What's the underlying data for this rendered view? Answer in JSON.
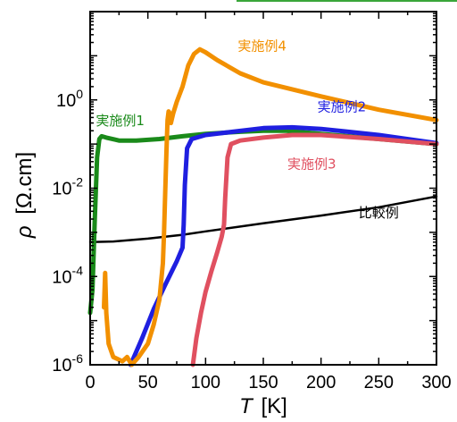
{
  "chart_data": {
    "type": "line",
    "xlabel_symbol": "T",
    "xlabel_unit": "[K]",
    "ylabel_symbol": "ρ",
    "ylabel_unit": "[Ω.cm]",
    "xlim": [
      0,
      300
    ],
    "ylim": [
      1e-06,
      100
    ],
    "yscale": "log",
    "grid": false,
    "x_ticks": [
      0,
      50,
      100,
      150,
      200,
      250,
      300
    ],
    "y_ticks": [
      {
        "value": 1e-06,
        "base": "10",
        "exp": "-6"
      },
      {
        "value": 0.0001,
        "base": "10",
        "exp": "-4"
      },
      {
        "value": 0.01,
        "base": "10",
        "exp": "-2"
      },
      {
        "value": 1,
        "base": "10",
        "exp": "0"
      }
    ],
    "series": [
      {
        "name": "比較例",
        "color": "#000000",
        "points": [
          [
            0,
            0.0006
          ],
          [
            20,
            0.00062
          ],
          [
            50,
            0.00072
          ],
          [
            80,
            0.00088
          ],
          [
            100,
            0.00105
          ],
          [
            150,
            0.0016
          ],
          [
            200,
            0.0024
          ],
          [
            250,
            0.0037
          ],
          [
            300,
            0.0065
          ]
        ]
      },
      {
        "name": "実施例1",
        "color": "#1a8a1a",
        "points": [
          [
            0,
            1.5e-05
          ],
          [
            2,
            5e-05
          ],
          [
            4,
            0.002
          ],
          [
            6,
            0.05
          ],
          [
            8,
            0.13
          ],
          [
            10,
            0.15
          ],
          [
            14,
            0.14
          ],
          [
            25,
            0.12
          ],
          [
            40,
            0.12
          ],
          [
            60,
            0.13
          ],
          [
            80,
            0.15
          ],
          [
            100,
            0.17
          ],
          [
            130,
            0.19
          ],
          [
            150,
            0.2
          ],
          [
            170,
            0.2
          ],
          [
            200,
            0.17
          ],
          [
            250,
            0.13
          ],
          [
            300,
            0.1
          ]
        ]
      },
      {
        "name": "実施例2",
        "color": "#1f1fe0",
        "points": [
          [
            35,
            1e-06
          ],
          [
            45,
            4e-06
          ],
          [
            55,
            1.8e-05
          ],
          [
            65,
            6.5e-05
          ],
          [
            75,
            0.00022
          ],
          [
            80,
            0.00045
          ],
          [
            81,
            0.0015
          ],
          [
            82,
            0.012
          ],
          [
            84,
            0.08
          ],
          [
            88,
            0.13
          ],
          [
            100,
            0.16
          ],
          [
            150,
            0.23
          ],
          [
            175,
            0.24
          ],
          [
            200,
            0.22
          ],
          [
            250,
            0.16
          ],
          [
            300,
            0.105
          ]
        ]
      },
      {
        "name": "実施例3",
        "color": "#e05060",
        "points": [
          [
            89,
            1e-06
          ],
          [
            92,
            4e-06
          ],
          [
            96,
            1.5e-05
          ],
          [
            100,
            4.5e-05
          ],
          [
            105,
            0.00013
          ],
          [
            110,
            0.00035
          ],
          [
            114,
            0.0008
          ],
          [
            116,
            0.0015
          ],
          [
            117,
            0.006
          ],
          [
            119,
            0.05
          ],
          [
            122,
            0.1
          ],
          [
            130,
            0.12
          ],
          [
            150,
            0.14
          ],
          [
            175,
            0.16
          ],
          [
            200,
            0.16
          ],
          [
            250,
            0.13
          ],
          [
            300,
            0.1
          ]
        ]
      },
      {
        "name": "実施例4",
        "color": "#f29000",
        "points": [
          [
            12,
            2e-05
          ],
          [
            13,
            0.00012
          ],
          [
            14,
            1.5e-05
          ],
          [
            16,
            3e-06
          ],
          [
            20,
            1.5e-06
          ],
          [
            28,
            1.2e-06
          ],
          [
            32,
            1.5e-06
          ],
          [
            36,
            1e-06
          ],
          [
            42,
            1.5e-06
          ],
          [
            50,
            3e-06
          ],
          [
            55,
            8e-06
          ],
          [
            60,
            3e-05
          ],
          [
            63,
            0.0002
          ],
          [
            64,
            0.001
          ],
          [
            65,
            0.008
          ],
          [
            66,
            0.06
          ],
          [
            67,
            0.35
          ],
          [
            68,
            0.55
          ],
          [
            69,
            0.5
          ],
          [
            70,
            0.3
          ],
          [
            72,
            0.5
          ],
          [
            75,
            0.9
          ],
          [
            80,
            2
          ],
          [
            85,
            6
          ],
          [
            90,
            11
          ],
          [
            95,
            14
          ],
          [
            100,
            12
          ],
          [
            110,
            8
          ],
          [
            130,
            4
          ],
          [
            150,
            2.5
          ],
          [
            200,
            1.2
          ],
          [
            250,
            0.6
          ],
          [
            300,
            0.35
          ]
        ]
      }
    ],
    "annotations": [
      {
        "text": "比較例",
        "x": 250,
        "y": 0.0022,
        "color": "#000000"
      },
      {
        "text": "実施例1",
        "x": 26,
        "y": 0.27,
        "color": "#1a8a1a"
      },
      {
        "text": "実施例2",
        "x": 218,
        "y": 0.55,
        "color": "#1f1fe0"
      },
      {
        "text": "実施例3",
        "x": 192,
        "y": 0.028,
        "color": "#e05060"
      },
      {
        "text": "実施例4",
        "x": 149,
        "y": 13,
        "color": "#f29000"
      }
    ]
  }
}
